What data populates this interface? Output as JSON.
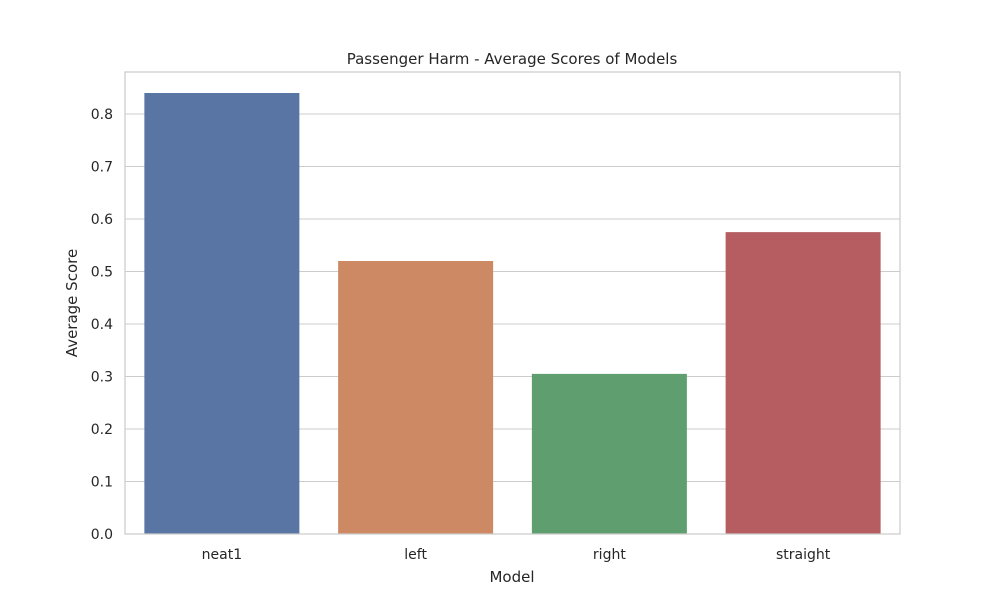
{
  "chart_data": {
    "type": "bar",
    "title": "Passenger Harm - Average Scores of Models",
    "xlabel": "Model",
    "ylabel": "Average Score",
    "categories": [
      "neat1",
      "left",
      "right",
      "straight"
    ],
    "values": [
      0.84,
      0.52,
      0.305,
      0.575
    ],
    "colors": [
      "#5875a4",
      "#cc8963",
      "#5f9e6e",
      "#b55d60"
    ],
    "ylim": [
      0,
      0.88
    ],
    "yticks": [
      "0.0",
      "0.1",
      "0.2",
      "0.3",
      "0.4",
      "0.5",
      "0.6",
      "0.7",
      "0.8"
    ],
    "grid": true,
    "grid_axis": "y",
    "legend": "none"
  }
}
